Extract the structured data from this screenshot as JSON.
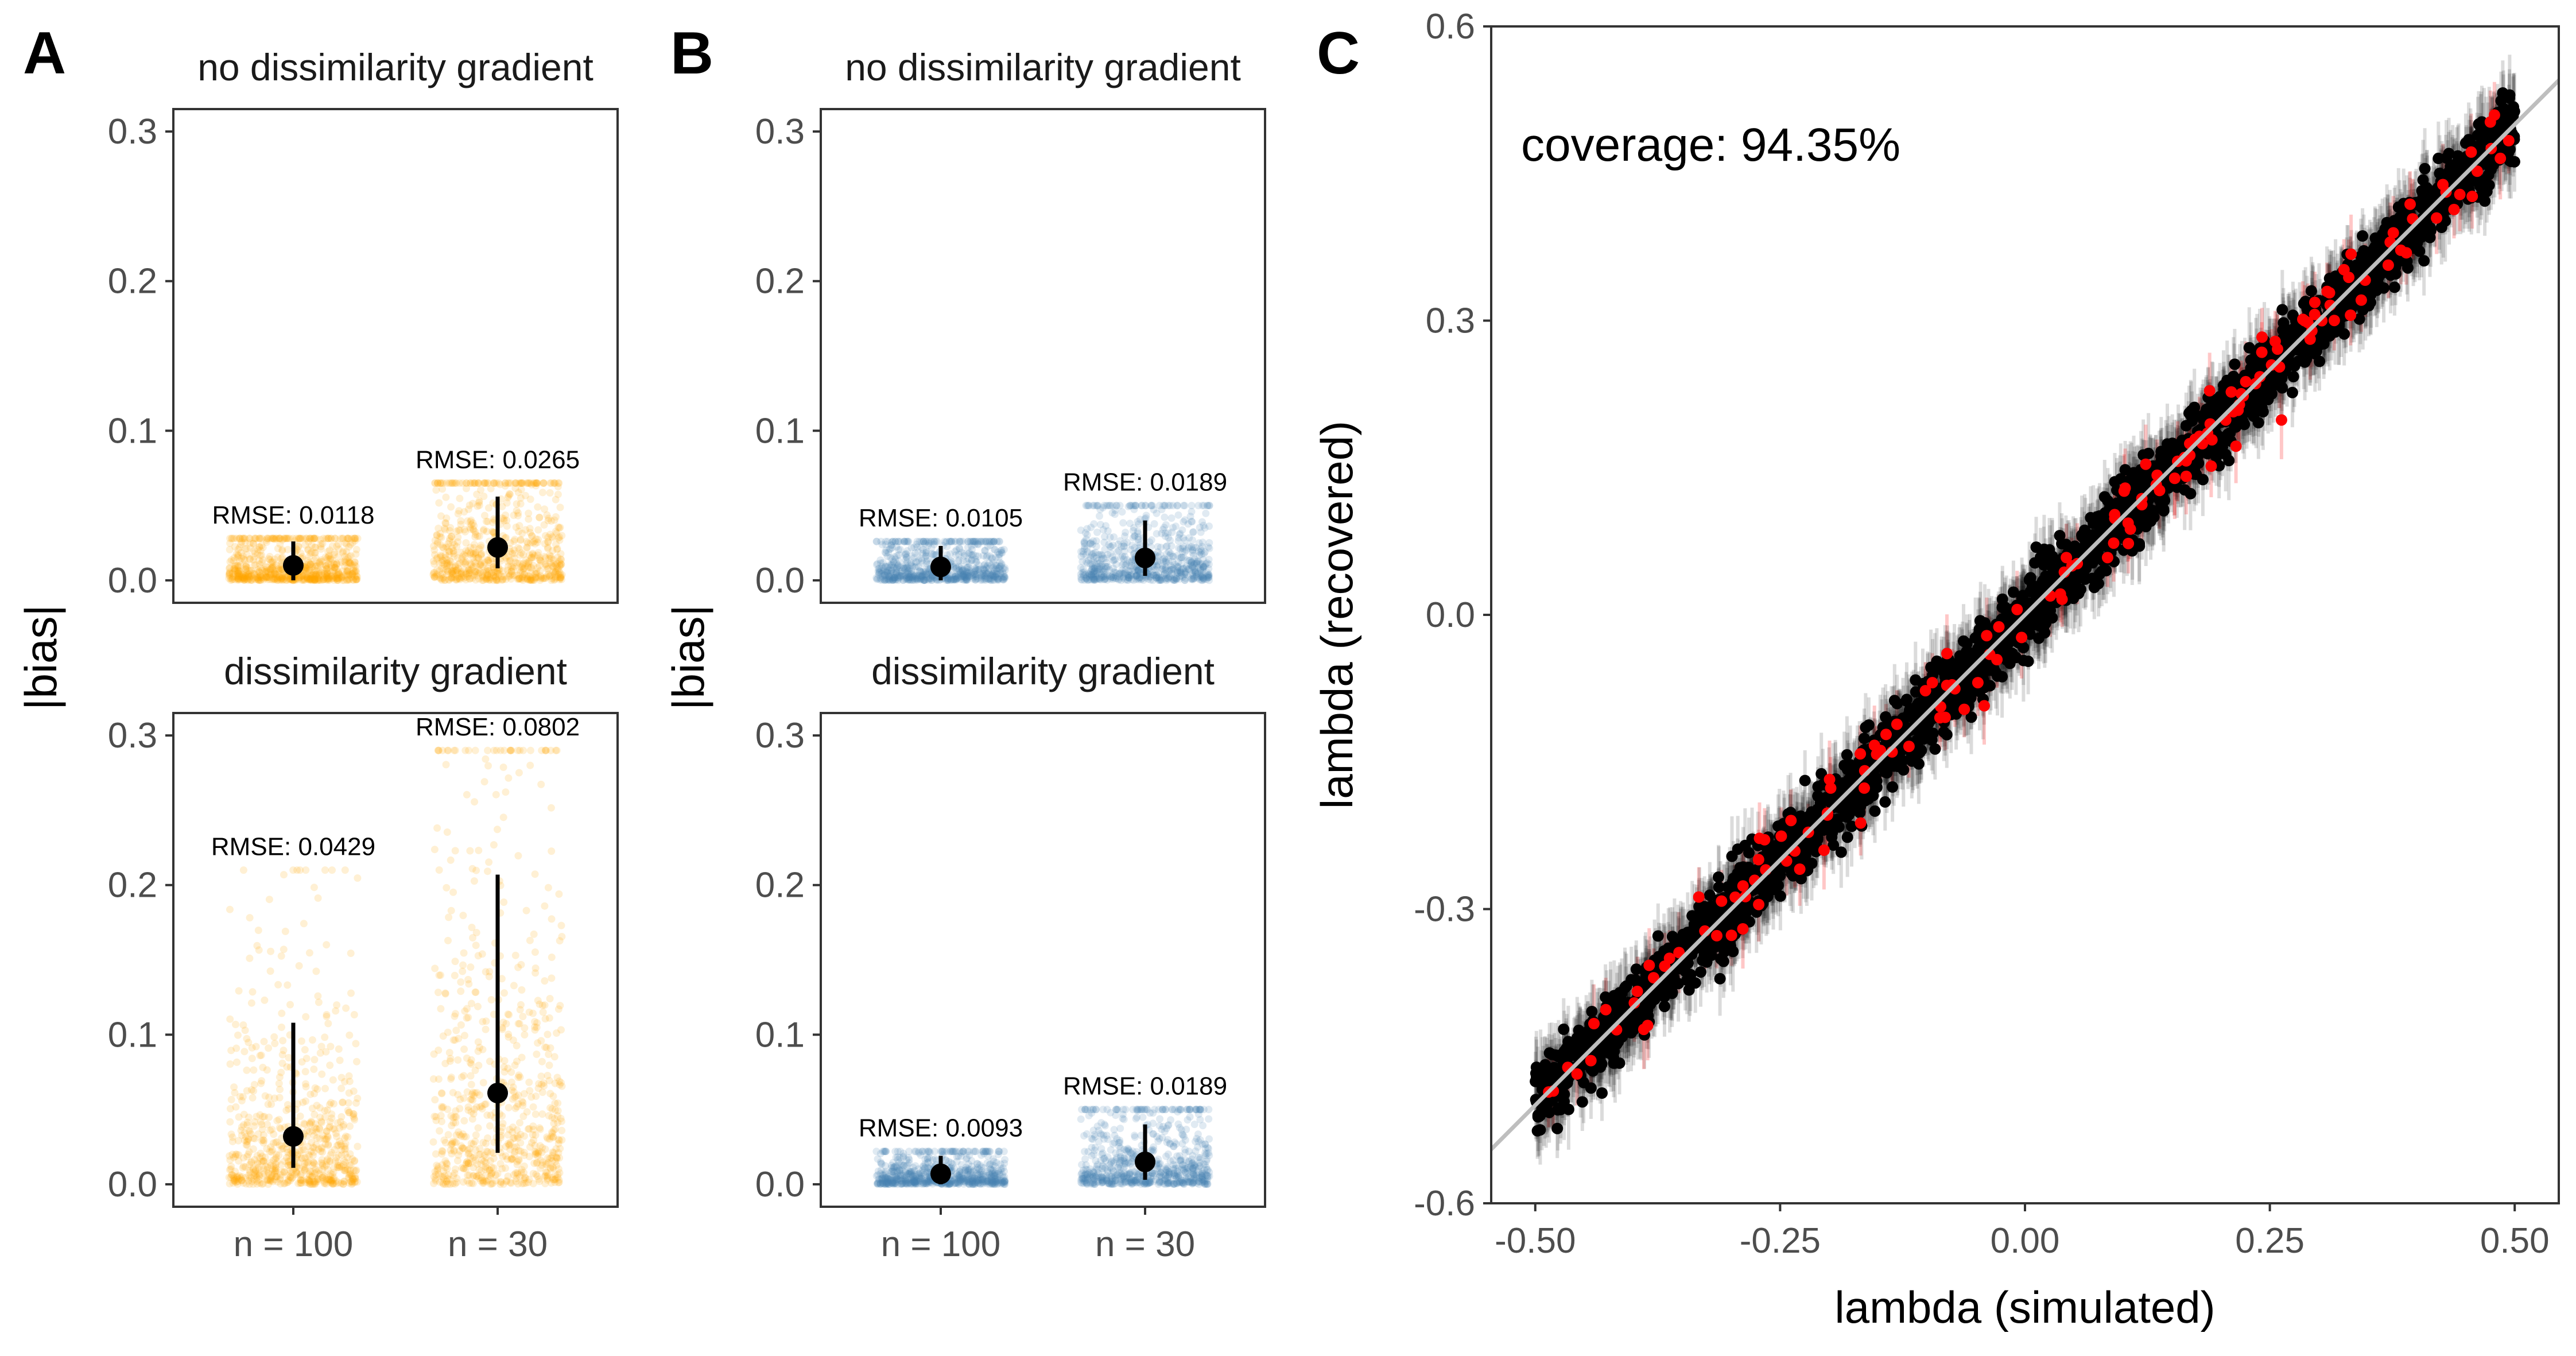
{
  "figure": {
    "panel_letters": [
      "A",
      "B",
      "C"
    ]
  },
  "colors": {
    "panel_a_points": "#FFA500",
    "panel_b_points": "#4682B4",
    "summary": "#000000",
    "coverage_in": "#000000",
    "coverage_out": "#FF0000",
    "identity_line": "#BEBEBE",
    "panel_border": "#333333"
  },
  "chart_data": [
    {
      "panel": "A",
      "type": "scatter",
      "title": "",
      "ylabel": "|bias|",
      "xlabel": "",
      "categories": [
        "n = 100",
        "n = 30"
      ],
      "yticks": [
        "0.0",
        "0.1",
        "0.2",
        "0.3"
      ],
      "ylim": [
        -0.015,
        0.315
      ],
      "facets": [
        {
          "strip": "no dissimilarity gradient",
          "groups": [
            {
              "category": "n = 100",
              "mean": 0.01,
              "lower": 0.0,
              "upper": 0.026,
              "rmse_label": "RMSE: 0.0118",
              "spread_max": 0.028
            },
            {
              "category": "n = 30",
              "mean": 0.022,
              "lower": 0.008,
              "upper": 0.056,
              "rmse_label": "RMSE: 0.0265",
              "spread_max": 0.065
            }
          ]
        },
        {
          "strip": "dissimilarity gradient",
          "groups": [
            {
              "category": "n = 100",
              "mean": 0.032,
              "lower": 0.011,
              "upper": 0.108,
              "rmse_label": "RMSE: 0.0429",
              "spread_max": 0.21
            },
            {
              "category": "n = 30",
              "mean": 0.061,
              "lower": 0.021,
              "upper": 0.207,
              "rmse_label": "RMSE: 0.0802",
              "spread_max": 0.29
            }
          ]
        }
      ]
    },
    {
      "panel": "B",
      "type": "scatter",
      "title": "",
      "ylabel": "|bias|",
      "xlabel": "",
      "categories": [
        "n = 100",
        "n = 30"
      ],
      "yticks": [
        "0.0",
        "0.1",
        "0.2",
        "0.3"
      ],
      "ylim": [
        -0.015,
        0.315
      ],
      "facets": [
        {
          "strip": "no dissimilarity gradient",
          "groups": [
            {
              "category": "n = 100",
              "mean": 0.009,
              "lower": 0.0,
              "upper": 0.023,
              "rmse_label": "RMSE: 0.0105",
              "spread_max": 0.026
            },
            {
              "category": "n = 30",
              "mean": 0.015,
              "lower": 0.003,
              "upper": 0.04,
              "rmse_label": "RMSE: 0.0189",
              "spread_max": 0.05
            }
          ]
        },
        {
          "strip": "dissimilarity gradient",
          "groups": [
            {
              "category": "n = 100",
              "mean": 0.007,
              "lower": 0.0,
              "upper": 0.019,
              "rmse_label": "RMSE: 0.0093",
              "spread_max": 0.022
            },
            {
              "category": "n = 30",
              "mean": 0.015,
              "lower": 0.003,
              "upper": 0.04,
              "rmse_label": "RMSE: 0.0189",
              "spread_max": 0.05
            }
          ]
        }
      ]
    },
    {
      "panel": "C",
      "type": "scatter",
      "title": "",
      "xlabel": "lambda (simulated)",
      "ylabel": "lambda (recovered)",
      "annotation": "coverage: 94.35%",
      "coverage_fraction": 0.9435,
      "xlim": [
        -0.545,
        0.545
      ],
      "ylim": [
        -0.6,
        0.6
      ],
      "xticks": [
        "-0.50",
        "-0.25",
        "0.00",
        "0.25",
        "0.50"
      ],
      "yticks": [
        "-0.6",
        "-0.3",
        "0.0",
        "0.3",
        "0.6"
      ],
      "identity_line": {
        "intercept": 0,
        "slope": 1
      },
      "simulated_range": [
        -0.5,
        0.5
      ],
      "recovery_sd": 0.018,
      "interval_half_width": 0.035,
      "point_count": 3000
    }
  ]
}
